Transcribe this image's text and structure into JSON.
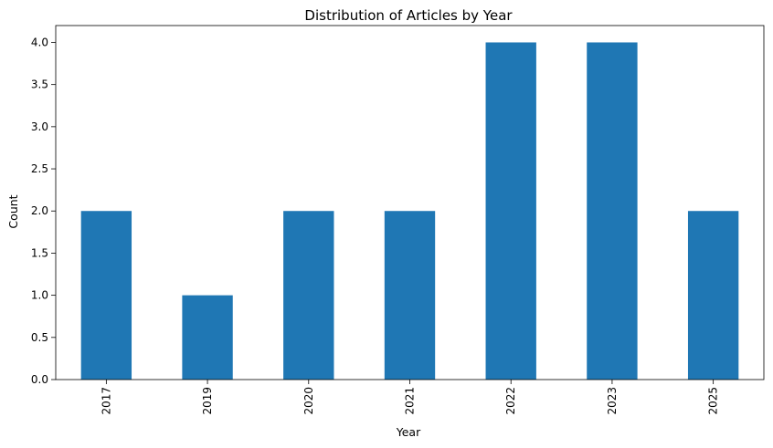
{
  "chart_data": {
    "type": "bar",
    "title": "Distribution of Articles by Year",
    "xlabel": "Year",
    "ylabel": "Count",
    "categories": [
      "2017",
      "2019",
      "2020",
      "2021",
      "2022",
      "2023",
      "2025"
    ],
    "values": [
      2,
      1,
      2,
      2,
      4,
      4,
      2
    ],
    "yticks": [
      "0.0",
      "0.5",
      "1.0",
      "1.5",
      "2.0",
      "2.5",
      "3.0",
      "3.5",
      "4.0"
    ],
    "ylim": [
      0,
      4.2
    ],
    "x_tick_rotation": "vertical",
    "grid": false,
    "legend": false,
    "bar_color": "#1f77b4"
  }
}
